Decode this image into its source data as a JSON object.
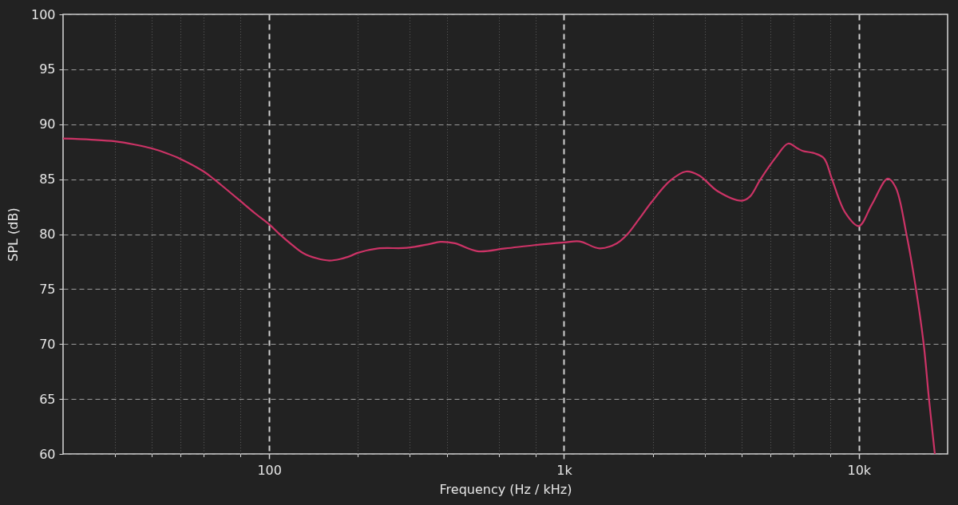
{
  "chart_data": {
    "type": "line",
    "xlabel": "Frequency (Hz / kHz)",
    "ylabel": "SPL (dB)",
    "x": [
      20,
      25,
      30,
      35,
      40,
      45,
      50,
      60,
      65,
      70,
      80,
      90,
      100,
      108,
      120,
      130,
      145,
      160,
      175,
      190,
      200,
      234,
      293,
      350,
      380,
      426,
      508,
      632,
      794,
      1000,
      1130,
      1321,
      1511,
      1642,
      1800,
      1979,
      2288,
      2592,
      2875,
      3323,
      4006,
      4264,
      4632,
      5244,
      5758,
      6194,
      6457,
      7087,
      7618,
      8107,
      8995,
      10000,
      11066,
      12535,
      13335,
      14500,
      15585,
      16590,
      17290,
      18100
    ],
    "series": [
      {
        "color": "#cc3366",
        "values": [
          88.7,
          88.6,
          88.45,
          88.15,
          87.8,
          87.35,
          86.85,
          85.7,
          85.0,
          84.3,
          83.0,
          81.85,
          80.9,
          80.05,
          79.0,
          78.3,
          77.8,
          77.6,
          77.75,
          78.05,
          78.3,
          78.7,
          78.75,
          79.1,
          79.3,
          79.17,
          78.45,
          78.7,
          79.0,
          79.24,
          79.34,
          78.7,
          79.17,
          80.0,
          81.4,
          82.9,
          84.85,
          85.7,
          85.34,
          83.9,
          83.04,
          83.4,
          84.97,
          87.03,
          88.24,
          87.8,
          87.57,
          87.35,
          86.9,
          85.0,
          81.95,
          80.74,
          82.7,
          85.05,
          84.25,
          80.0,
          75.18,
          70.0,
          65.0,
          60
        ]
      }
    ],
    "xlim": [
      20,
      20000
    ],
    "ylim": [
      60,
      100
    ],
    "xticks": [
      {
        "value": 30,
        "label": null
      },
      {
        "value": 40,
        "label": null
      },
      {
        "value": 50,
        "label": null
      },
      {
        "value": 60,
        "label": null
      },
      {
        "value": 80,
        "label": null
      },
      100,
      {
        "value": 200,
        "label": null
      },
      {
        "value": 300,
        "label": null
      },
      {
        "value": 400,
        "label": null
      },
      {
        "value": 600,
        "label": null
      },
      {
        "value": 800,
        "label": null
      },
      {
        "value": 1000,
        "label": "1k"
      },
      {
        "value": 2000,
        "label": null
      },
      {
        "value": 3000,
        "label": null
      },
      {
        "value": 4000,
        "label": null
      },
      {
        "value": 5000,
        "label": null
      },
      {
        "value": 6000,
        "label": null
      },
      {
        "value": 8000,
        "label": null
      },
      {
        "value": 10000,
        "label": "10k"
      }
    ],
    "yticks": [
      60,
      65,
      70,
      75,
      80,
      85,
      90,
      95,
      100
    ],
    "log": "x",
    "grid": true
  }
}
